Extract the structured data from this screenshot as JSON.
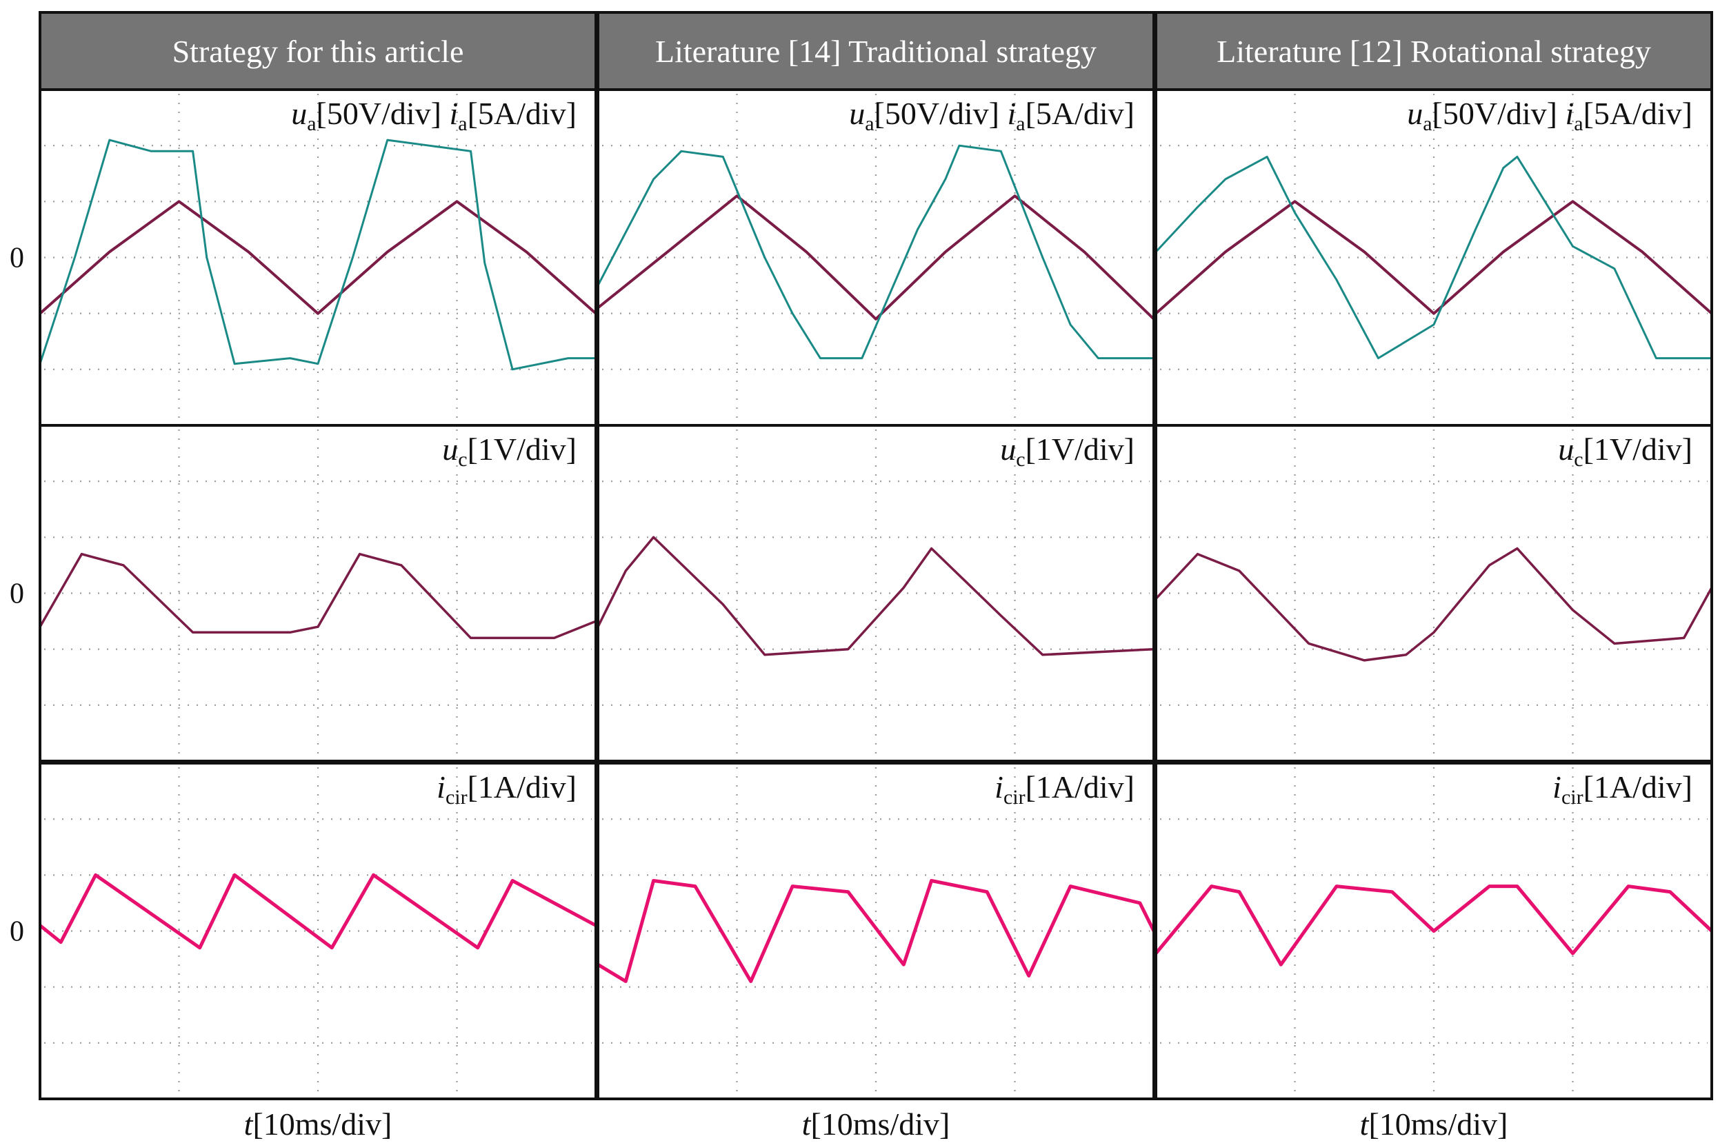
{
  "columns": [
    {
      "title": "Strategy for this article"
    },
    {
      "title": "Literature [14] Traditional strategy"
    },
    {
      "title": "Literature [12] Rotational strategy"
    }
  ],
  "row_labels": [
    {
      "parts": [
        {
          "t": "u",
          "style": "it"
        },
        {
          "t": "a",
          "style": "sub"
        },
        {
          "t": "[50V/div]  ",
          "style": "n"
        },
        {
          "t": "i",
          "style": "it"
        },
        {
          "t": "a",
          "style": "sub"
        },
        {
          "t": "[5A/div]",
          "style": "n"
        }
      ]
    },
    {
      "parts": [
        {
          "t": "u",
          "style": "it"
        },
        {
          "t": "c",
          "style": "sub"
        },
        {
          "t": "[1V/div]",
          "style": "n"
        }
      ]
    },
    {
      "parts": [
        {
          "t": "i",
          "style": "it"
        },
        {
          "t": "cir",
          "style": "sub"
        },
        {
          "t": "[1A/div]",
          "style": "n"
        }
      ]
    }
  ],
  "x_label": {
    "var": "t",
    "unit": "[10ms/div]"
  },
  "zero_label": "0",
  "colors": {
    "header_bg": "#757575",
    "voltage_trace": "#1a8a86",
    "current_sine": "#7a1c46",
    "capacitor_trace": "#7a1c46",
    "circulating_current": "#e8106e"
  },
  "chart_data": [
    {
      "type": "line",
      "panel": "Strategy for this article / ua ia",
      "xlim": [
        0,
        4
      ],
      "ylim": [
        -3,
        3
      ],
      "series": [
        {
          "values": [
            [
              0,
              -1.0
            ],
            [
              0.5,
              0.1
            ],
            [
              1,
              1.0
            ],
            [
              1.5,
              0.1
            ],
            [
              2,
              -1.0
            ],
            [
              2.5,
              0.1
            ],
            [
              3,
              1.0
            ],
            [
              3.5,
              0.1
            ],
            [
              4,
              -1.0
            ]
          ]
        },
        {
          "values": [
            [
              0,
              -1.9
            ],
            [
              0.25,
              0.0
            ],
            [
              0.5,
              2.1
            ],
            [
              0.8,
              1.9
            ],
            [
              1.1,
              1.9
            ],
            [
              1.2,
              0.0
            ],
            [
              1.4,
              -1.9
            ],
            [
              1.8,
              -1.8
            ],
            [
              2,
              -1.9
            ],
            [
              2.25,
              0.0
            ],
            [
              2.5,
              2.1
            ],
            [
              2.8,
              2.0
            ],
            [
              3.1,
              1.9
            ],
            [
              3.2,
              -0.1
            ],
            [
              3.4,
              -2.0
            ],
            [
              3.8,
              -1.8
            ],
            [
              4,
              -1.8
            ]
          ]
        }
      ]
    },
    {
      "type": "line",
      "panel": "Strategy for this article / uc",
      "xlim": [
        0,
        4
      ],
      "ylim": [
        -3,
        3
      ],
      "series": [
        {
          "values": [
            [
              0,
              -0.6
            ],
            [
              0.3,
              0.7
            ],
            [
              0.6,
              0.5
            ],
            [
              1.1,
              -0.7
            ],
            [
              1.8,
              -0.7
            ],
            [
              2.0,
              -0.6
            ],
            [
              2.3,
              0.7
            ],
            [
              2.6,
              0.5
            ],
            [
              3.1,
              -0.8
            ],
            [
              3.7,
              -0.8
            ],
            [
              4,
              -0.5
            ]
          ]
        }
      ]
    },
    {
      "type": "line",
      "panel": "Strategy for this article / icir",
      "xlim": [
        0,
        4
      ],
      "ylim": [
        -3,
        3
      ],
      "series": [
        {
          "values": [
            [
              0,
              0.1
            ],
            [
              0.15,
              -0.2
            ],
            [
              0.4,
              1.0
            ],
            [
              1.15,
              -0.3
            ],
            [
              1.4,
              1.0
            ],
            [
              2.1,
              -0.3
            ],
            [
              2.4,
              1.0
            ],
            [
              3.15,
              -0.3
            ],
            [
              3.4,
              0.9
            ],
            [
              4,
              0.1
            ]
          ]
        }
      ]
    },
    {
      "type": "line",
      "panel": "Literature [14] Traditional strategy / ua ia",
      "xlim": [
        0,
        4
      ],
      "ylim": [
        -3,
        3
      ],
      "series": [
        {
          "values": [
            [
              0,
              -0.9
            ],
            [
              0.5,
              0.1
            ],
            [
              1,
              1.1
            ],
            [
              1.5,
              0.1
            ],
            [
              2,
              -1.1
            ],
            [
              2.5,
              0.1
            ],
            [
              3,
              1.1
            ],
            [
              3.5,
              0.1
            ],
            [
              4,
              -1.1
            ]
          ]
        },
        {
          "values": [
            [
              0,
              -0.5
            ],
            [
              0.4,
              1.4
            ],
            [
              0.6,
              1.9
            ],
            [
              0.9,
              1.8
            ],
            [
              1.2,
              0.0
            ],
            [
              1.4,
              -1.0
            ],
            [
              1.6,
              -1.8
            ],
            [
              1.9,
              -1.8
            ],
            [
              2.3,
              0.5
            ],
            [
              2.5,
              1.4
            ],
            [
              2.6,
              2.0
            ],
            [
              2.9,
              1.9
            ],
            [
              3.2,
              0.0
            ],
            [
              3.4,
              -1.2
            ],
            [
              3.6,
              -1.8
            ],
            [
              4,
              -1.8
            ]
          ]
        }
      ]
    },
    {
      "type": "line",
      "panel": "Literature [14] Traditional strategy / uc",
      "xlim": [
        0,
        4
      ],
      "ylim": [
        -3,
        3
      ],
      "series": [
        {
          "values": [
            [
              0,
              -0.6
            ],
            [
              0.2,
              0.4
            ],
            [
              0.4,
              1.0
            ],
            [
              0.9,
              -0.2
            ],
            [
              1.2,
              -1.1
            ],
            [
              1.8,
              -1.0
            ],
            [
              2.2,
              0.1
            ],
            [
              2.4,
              0.8
            ],
            [
              2.9,
              -0.4
            ],
            [
              3.2,
              -1.1
            ],
            [
              4,
              -1.0
            ]
          ]
        }
      ]
    },
    {
      "type": "line",
      "panel": "Literature [14] Traditional strategy / icir",
      "xlim": [
        0,
        4
      ],
      "ylim": [
        -3,
        3
      ],
      "series": [
        {
          "values": [
            [
              0,
              -0.6
            ],
            [
              0.2,
              -0.9
            ],
            [
              0.4,
              0.9
            ],
            [
              0.7,
              0.8
            ],
            [
              1.1,
              -0.9
            ],
            [
              1.4,
              0.8
            ],
            [
              1.8,
              0.7
            ],
            [
              2.2,
              -0.6
            ],
            [
              2.4,
              0.9
            ],
            [
              2.8,
              0.7
            ],
            [
              3.1,
              -0.8
            ],
            [
              3.4,
              0.8
            ],
            [
              3.9,
              0.5
            ],
            [
              4,
              0.0
            ]
          ]
        }
      ]
    },
    {
      "type": "line",
      "panel": "Literature [12] Rotational strategy / ua ia",
      "xlim": [
        0,
        4
      ],
      "ylim": [
        -3,
        3
      ],
      "series": [
        {
          "values": [
            [
              0,
              -1.0
            ],
            [
              0.5,
              0.1
            ],
            [
              1,
              1.0
            ],
            [
              1.5,
              0.1
            ],
            [
              2,
              -1.0
            ],
            [
              2.5,
              0.1
            ],
            [
              3,
              1.0
            ],
            [
              3.5,
              0.1
            ],
            [
              4,
              -1.0
            ]
          ]
        },
        {
          "values": [
            [
              0,
              0.1
            ],
            [
              0.3,
              0.9
            ],
            [
              0.5,
              1.4
            ],
            [
              0.8,
              1.8
            ],
            [
              1.0,
              0.8
            ],
            [
              1.3,
              -0.4
            ],
            [
              1.6,
              -1.8
            ],
            [
              2.0,
              -1.2
            ],
            [
              2.3,
              0.5
            ],
            [
              2.5,
              1.6
            ],
            [
              2.6,
              1.8
            ],
            [
              3.0,
              0.2
            ],
            [
              3.3,
              -0.2
            ],
            [
              3.6,
              -1.8
            ],
            [
              4,
              -1.8
            ]
          ]
        }
      ]
    },
    {
      "type": "line",
      "panel": "Literature [12] Rotational strategy / uc",
      "xlim": [
        0,
        4
      ],
      "ylim": [
        -3,
        3
      ],
      "series": [
        {
          "values": [
            [
              0,
              -0.1
            ],
            [
              0.3,
              0.7
            ],
            [
              0.6,
              0.4
            ],
            [
              1.1,
              -0.9
            ],
            [
              1.5,
              -1.2
            ],
            [
              1.8,
              -1.1
            ],
            [
              2.0,
              -0.7
            ],
            [
              2.2,
              -0.1
            ],
            [
              2.4,
              0.5
            ],
            [
              2.6,
              0.8
            ],
            [
              3.0,
              -0.3
            ],
            [
              3.3,
              -0.9
            ],
            [
              3.8,
              -0.8
            ],
            [
              4,
              0.1
            ]
          ]
        }
      ]
    },
    {
      "type": "line",
      "panel": "Literature [12] Rotational strategy / icir",
      "xlim": [
        0,
        4
      ],
      "ylim": [
        -3,
        3
      ],
      "series": [
        {
          "values": [
            [
              0,
              -0.4
            ],
            [
              0.4,
              0.8
            ],
            [
              0.6,
              0.7
            ],
            [
              0.9,
              -0.6
            ],
            [
              1.3,
              0.8
            ],
            [
              1.7,
              0.7
            ],
            [
              2.0,
              0.0
            ],
            [
              2.4,
              0.8
            ],
            [
              2.6,
              0.8
            ],
            [
              3.0,
              -0.4
            ],
            [
              3.4,
              0.8
            ],
            [
              3.7,
              0.7
            ],
            [
              4,
              0.0
            ]
          ]
        }
      ]
    }
  ]
}
